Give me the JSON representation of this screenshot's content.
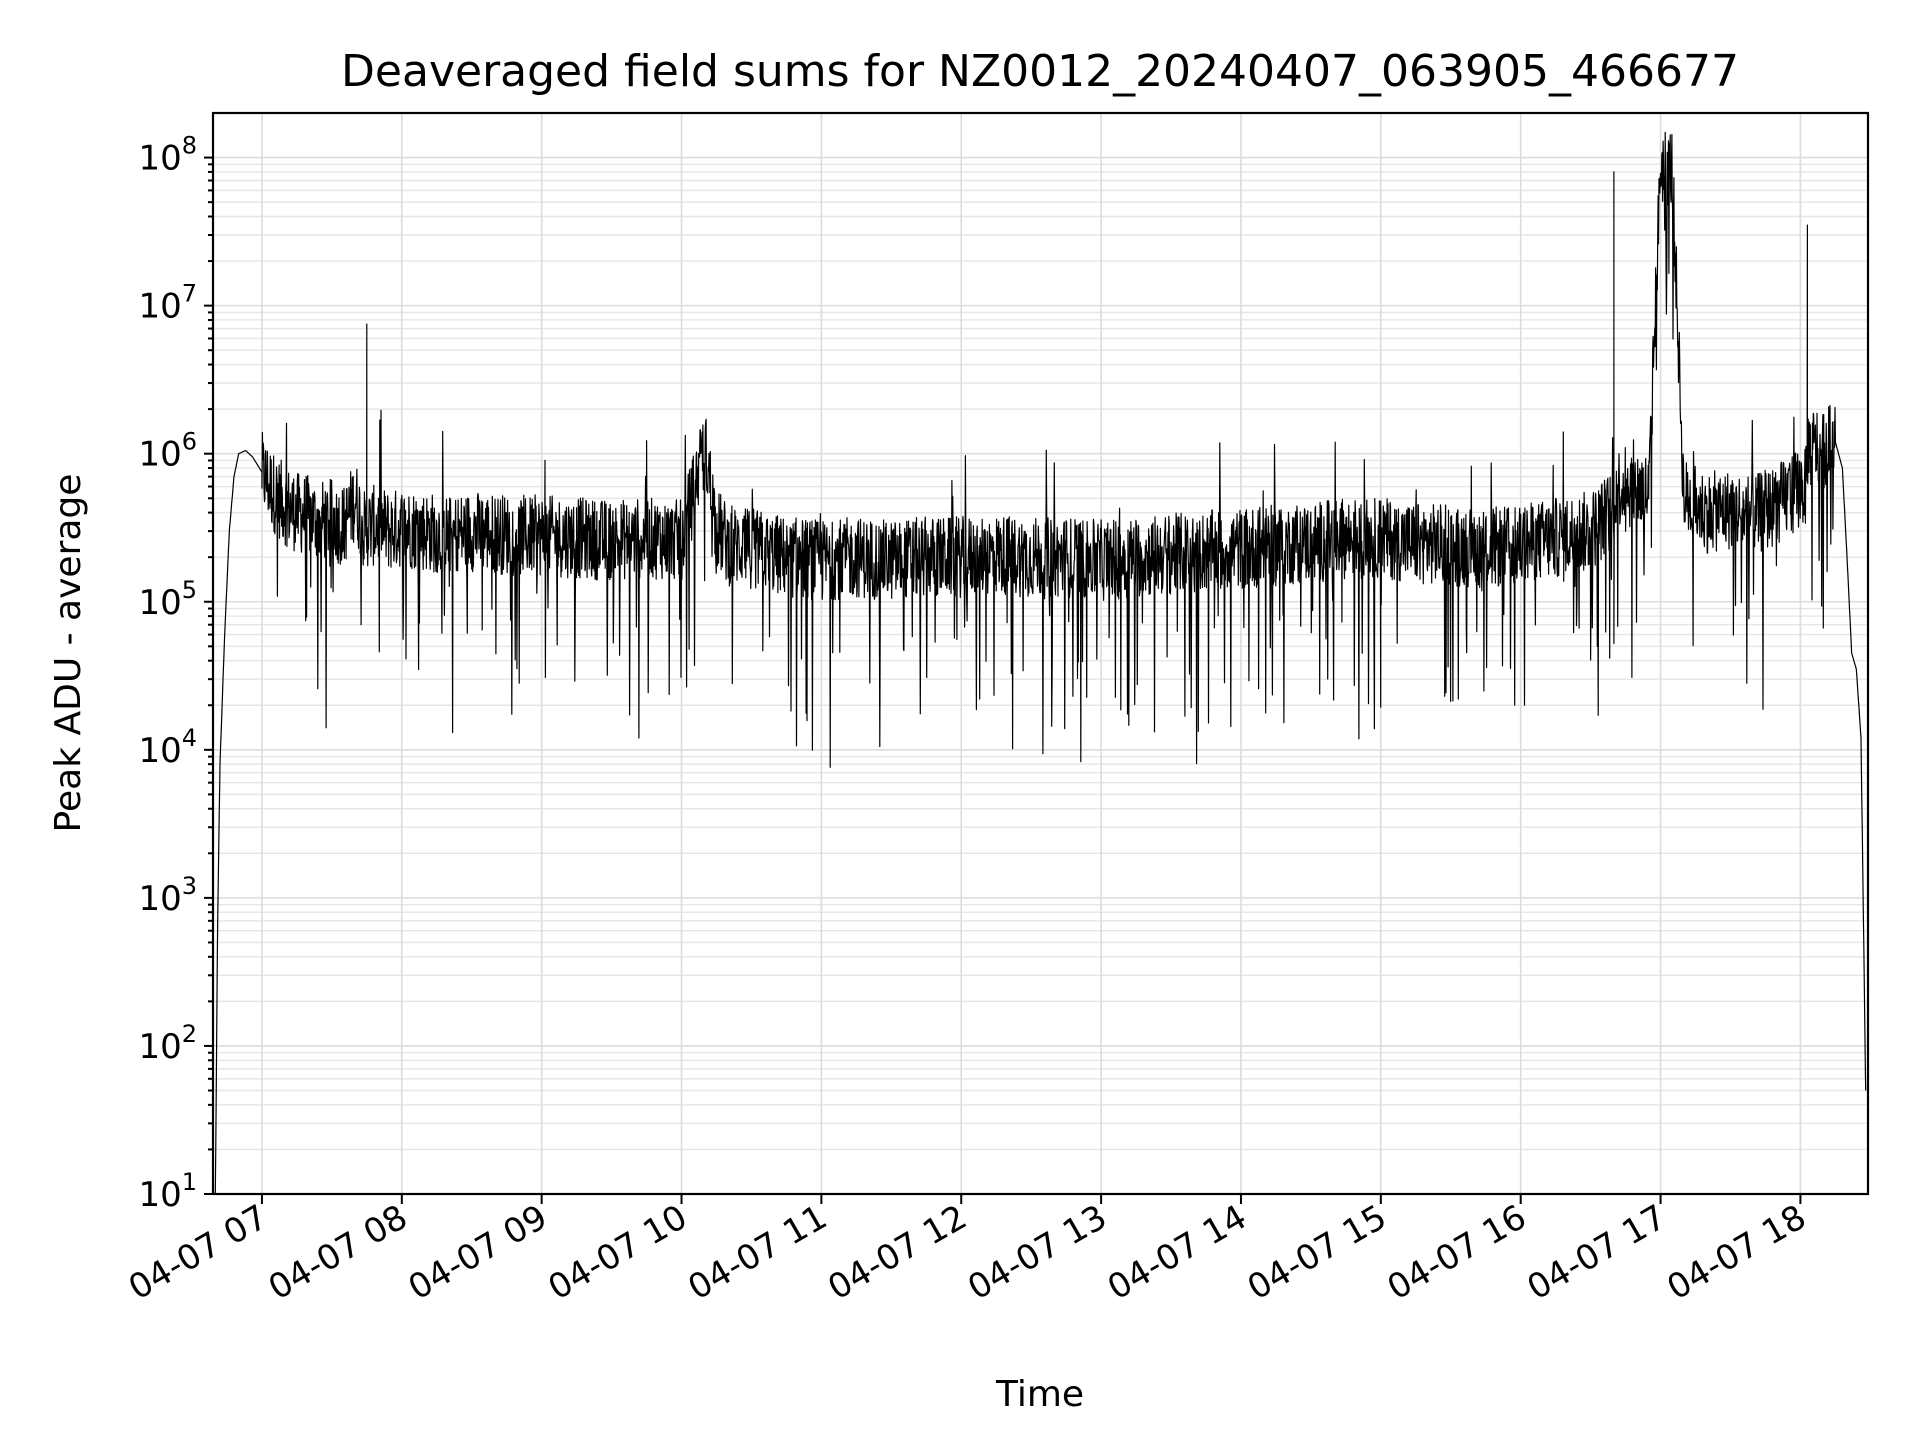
{
  "chart_data": {
    "type": "line",
    "title": "Deaveraged field sums for NZ0012_20240407_063905_466677",
    "xlabel": "Time",
    "ylabel": "Peak ADU - average",
    "yscale": "log",
    "ylim": [
      10,
      200000000
    ],
    "xlim": [
      "2024-04-07 06:39",
      "2024-04-07 18:29"
    ],
    "grid": true,
    "x_ticks": [
      {
        "t": "2024-04-07 07:00",
        "label": "04-07 07"
      },
      {
        "t": "2024-04-07 08:00",
        "label": "04-07 08"
      },
      {
        "t": "2024-04-07 09:00",
        "label": "04-07 09"
      },
      {
        "t": "2024-04-07 10:00",
        "label": "04-07 10"
      },
      {
        "t": "2024-04-07 11:00",
        "label": "04-07 11"
      },
      {
        "t": "2024-04-07 12:00",
        "label": "04-07 12"
      },
      {
        "t": "2024-04-07 13:00",
        "label": "04-07 13"
      },
      {
        "t": "2024-04-07 14:00",
        "label": "04-07 14"
      },
      {
        "t": "2024-04-07 15:00",
        "label": "04-07 15"
      },
      {
        "t": "2024-04-07 16:00",
        "label": "04-07 16"
      },
      {
        "t": "2024-04-07 17:00",
        "label": "04-07 17"
      },
      {
        "t": "2024-04-07 18:00",
        "label": "04-07 18"
      }
    ],
    "y_ticks": [
      {
        "value": 10,
        "base": "10",
        "exp": "1"
      },
      {
        "value": 100,
        "base": "10",
        "exp": "2"
      },
      {
        "value": 1000,
        "base": "10",
        "exp": "3"
      },
      {
        "value": 10000,
        "base": "10",
        "exp": "4"
      },
      {
        "value": 100000,
        "base": "10",
        "exp": "5"
      },
      {
        "value": 1000000,
        "base": "10",
        "exp": "6"
      },
      {
        "value": 10000000,
        "base": "10",
        "exp": "7"
      },
      {
        "value": 100000000,
        "base": "10",
        "exp": "8"
      }
    ],
    "series": [
      {
        "x": [
          "2024-04-07 06:40",
          "2024-04-07 06:41",
          "2024-04-07 06:42",
          "2024-04-07 06:44",
          "2024-04-07 06:46",
          "2024-04-07 06:48",
          "2024-04-07 06:50",
          "2024-04-07 06:53",
          "2024-04-07 06:56",
          "2024-04-07 07:00",
          "2024-04-07 07:05",
          "2024-04-07 07:10",
          "2024-04-07 07:15",
          "2024-04-07 07:20",
          "2024-04-07 07:25",
          "2024-04-07 07:30",
          "2024-04-07 07:35",
          "2024-04-07 07:40",
          "2024-04-07 07:44",
          "2024-04-07 07:45",
          "2024-04-07 07:46",
          "2024-04-07 07:50",
          "2024-04-07 07:55",
          "2024-04-07 08:00",
          "2024-04-07 08:10",
          "2024-04-07 08:20",
          "2024-04-07 08:30",
          "2024-04-07 08:40",
          "2024-04-07 08:50",
          "2024-04-07 09:00",
          "2024-04-07 09:15",
          "2024-04-07 09:30",
          "2024-04-07 09:45",
          "2024-04-07 10:00",
          "2024-04-07 10:10",
          "2024-04-07 10:15",
          "2024-04-07 10:20",
          "2024-04-07 10:30",
          "2024-04-07 10:45",
          "2024-04-07 11:00",
          "2024-04-07 11:15",
          "2024-04-07 11:30",
          "2024-04-07 11:45",
          "2024-04-07 12:00",
          "2024-04-07 12:15",
          "2024-04-07 12:30",
          "2024-04-07 12:45",
          "2024-04-07 13:00",
          "2024-04-07 13:15",
          "2024-04-07 13:30",
          "2024-04-07 13:45",
          "2024-04-07 14:00",
          "2024-04-07 14:15",
          "2024-04-07 14:30",
          "2024-04-07 14:45",
          "2024-04-07 15:00",
          "2024-04-07 15:15",
          "2024-04-07 15:30",
          "2024-04-07 15:45",
          "2024-04-07 16:00",
          "2024-04-07 16:10",
          "2024-04-07 16:20",
          "2024-04-07 16:30",
          "2024-04-07 16:38",
          "2024-04-07 16:40",
          "2024-04-07 16:45",
          "2024-04-07 16:55",
          "2024-04-07 17:00",
          "2024-04-07 17:05",
          "2024-04-07 17:10",
          "2024-04-07 17:20",
          "2024-04-07 17:30",
          "2024-04-07 17:40",
          "2024-04-07 17:50",
          "2024-04-07 18:00",
          "2024-04-07 18:03",
          "2024-04-07 18:10",
          "2024-04-07 18:15",
          "2024-04-07 18:18",
          "2024-04-07 18:20",
          "2024-04-07 18:22",
          "2024-04-07 18:24",
          "2024-04-07 18:26",
          "2024-04-07 18:27",
          "2024-04-07 18:28"
        ],
        "y": [
          10,
          700,
          8000,
          60000,
          300000,
          700000,
          1000000,
          1050000,
          950000,
          750000,
          550000,
          450000,
          400000,
          380000,
          350000,
          360000,
          320000,
          500000,
          300000,
          7500000,
          320000,
          330000,
          300000,
          320000,
          300000,
          280000,
          300000,
          290000,
          280000,
          280000,
          270000,
          260000,
          270000,
          260000,
          1100000,
          320000,
          240000,
          230000,
          200000,
          190000,
          200000,
          190000,
          200000,
          200000,
          210000,
          200000,
          200000,
          190000,
          200000,
          210000,
          220000,
          230000,
          240000,
          250000,
          270000,
          270000,
          250000,
          240000,
          230000,
          240000,
          260000,
          280000,
          300000,
          400000,
          80000000,
          600000,
          550000,
          90000000,
          85000000,
          500000,
          400000,
          420000,
          380000,
          450000,
          600000,
          35000000,
          1100000,
          1200000,
          800000,
          200000,
          45000,
          35000,
          12000,
          800,
          50
        ]
      }
    ],
    "notes_visible_spikes": "dense noisy band between ~1e4 and ~1e6"
  }
}
